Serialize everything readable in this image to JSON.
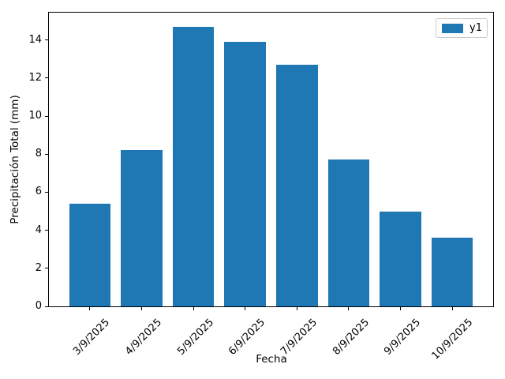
{
  "chart_data": {
    "type": "bar",
    "xlabel": "Fecha",
    "ylabel": "Precipitación Total (mm)",
    "categories": [
      "3/9/2025",
      "4/9/2025",
      "5/9/2025",
      "6/9/2025",
      "7/9/2025",
      "8/9/2025",
      "9/9/2025",
      "10/9/2025"
    ],
    "series": [
      {
        "name": "y1",
        "color": "#1f77b4",
        "values": [
          5.4,
          8.2,
          14.7,
          13.9,
          12.7,
          7.7,
          5.0,
          3.6
        ]
      }
    ],
    "yticks": [
      0,
      2,
      4,
      6,
      8,
      10,
      12,
      14
    ],
    "ylim": [
      0,
      15.435
    ],
    "xlim": [
      -0.79,
      7.79
    ],
    "bar_width": 0.8,
    "x_tick_rotation": 45,
    "grid": false,
    "legend": {
      "position": "upper right",
      "entries": [
        "y1"
      ]
    },
    "background_color": "#ffffff",
    "spine_color": "#000000"
  }
}
